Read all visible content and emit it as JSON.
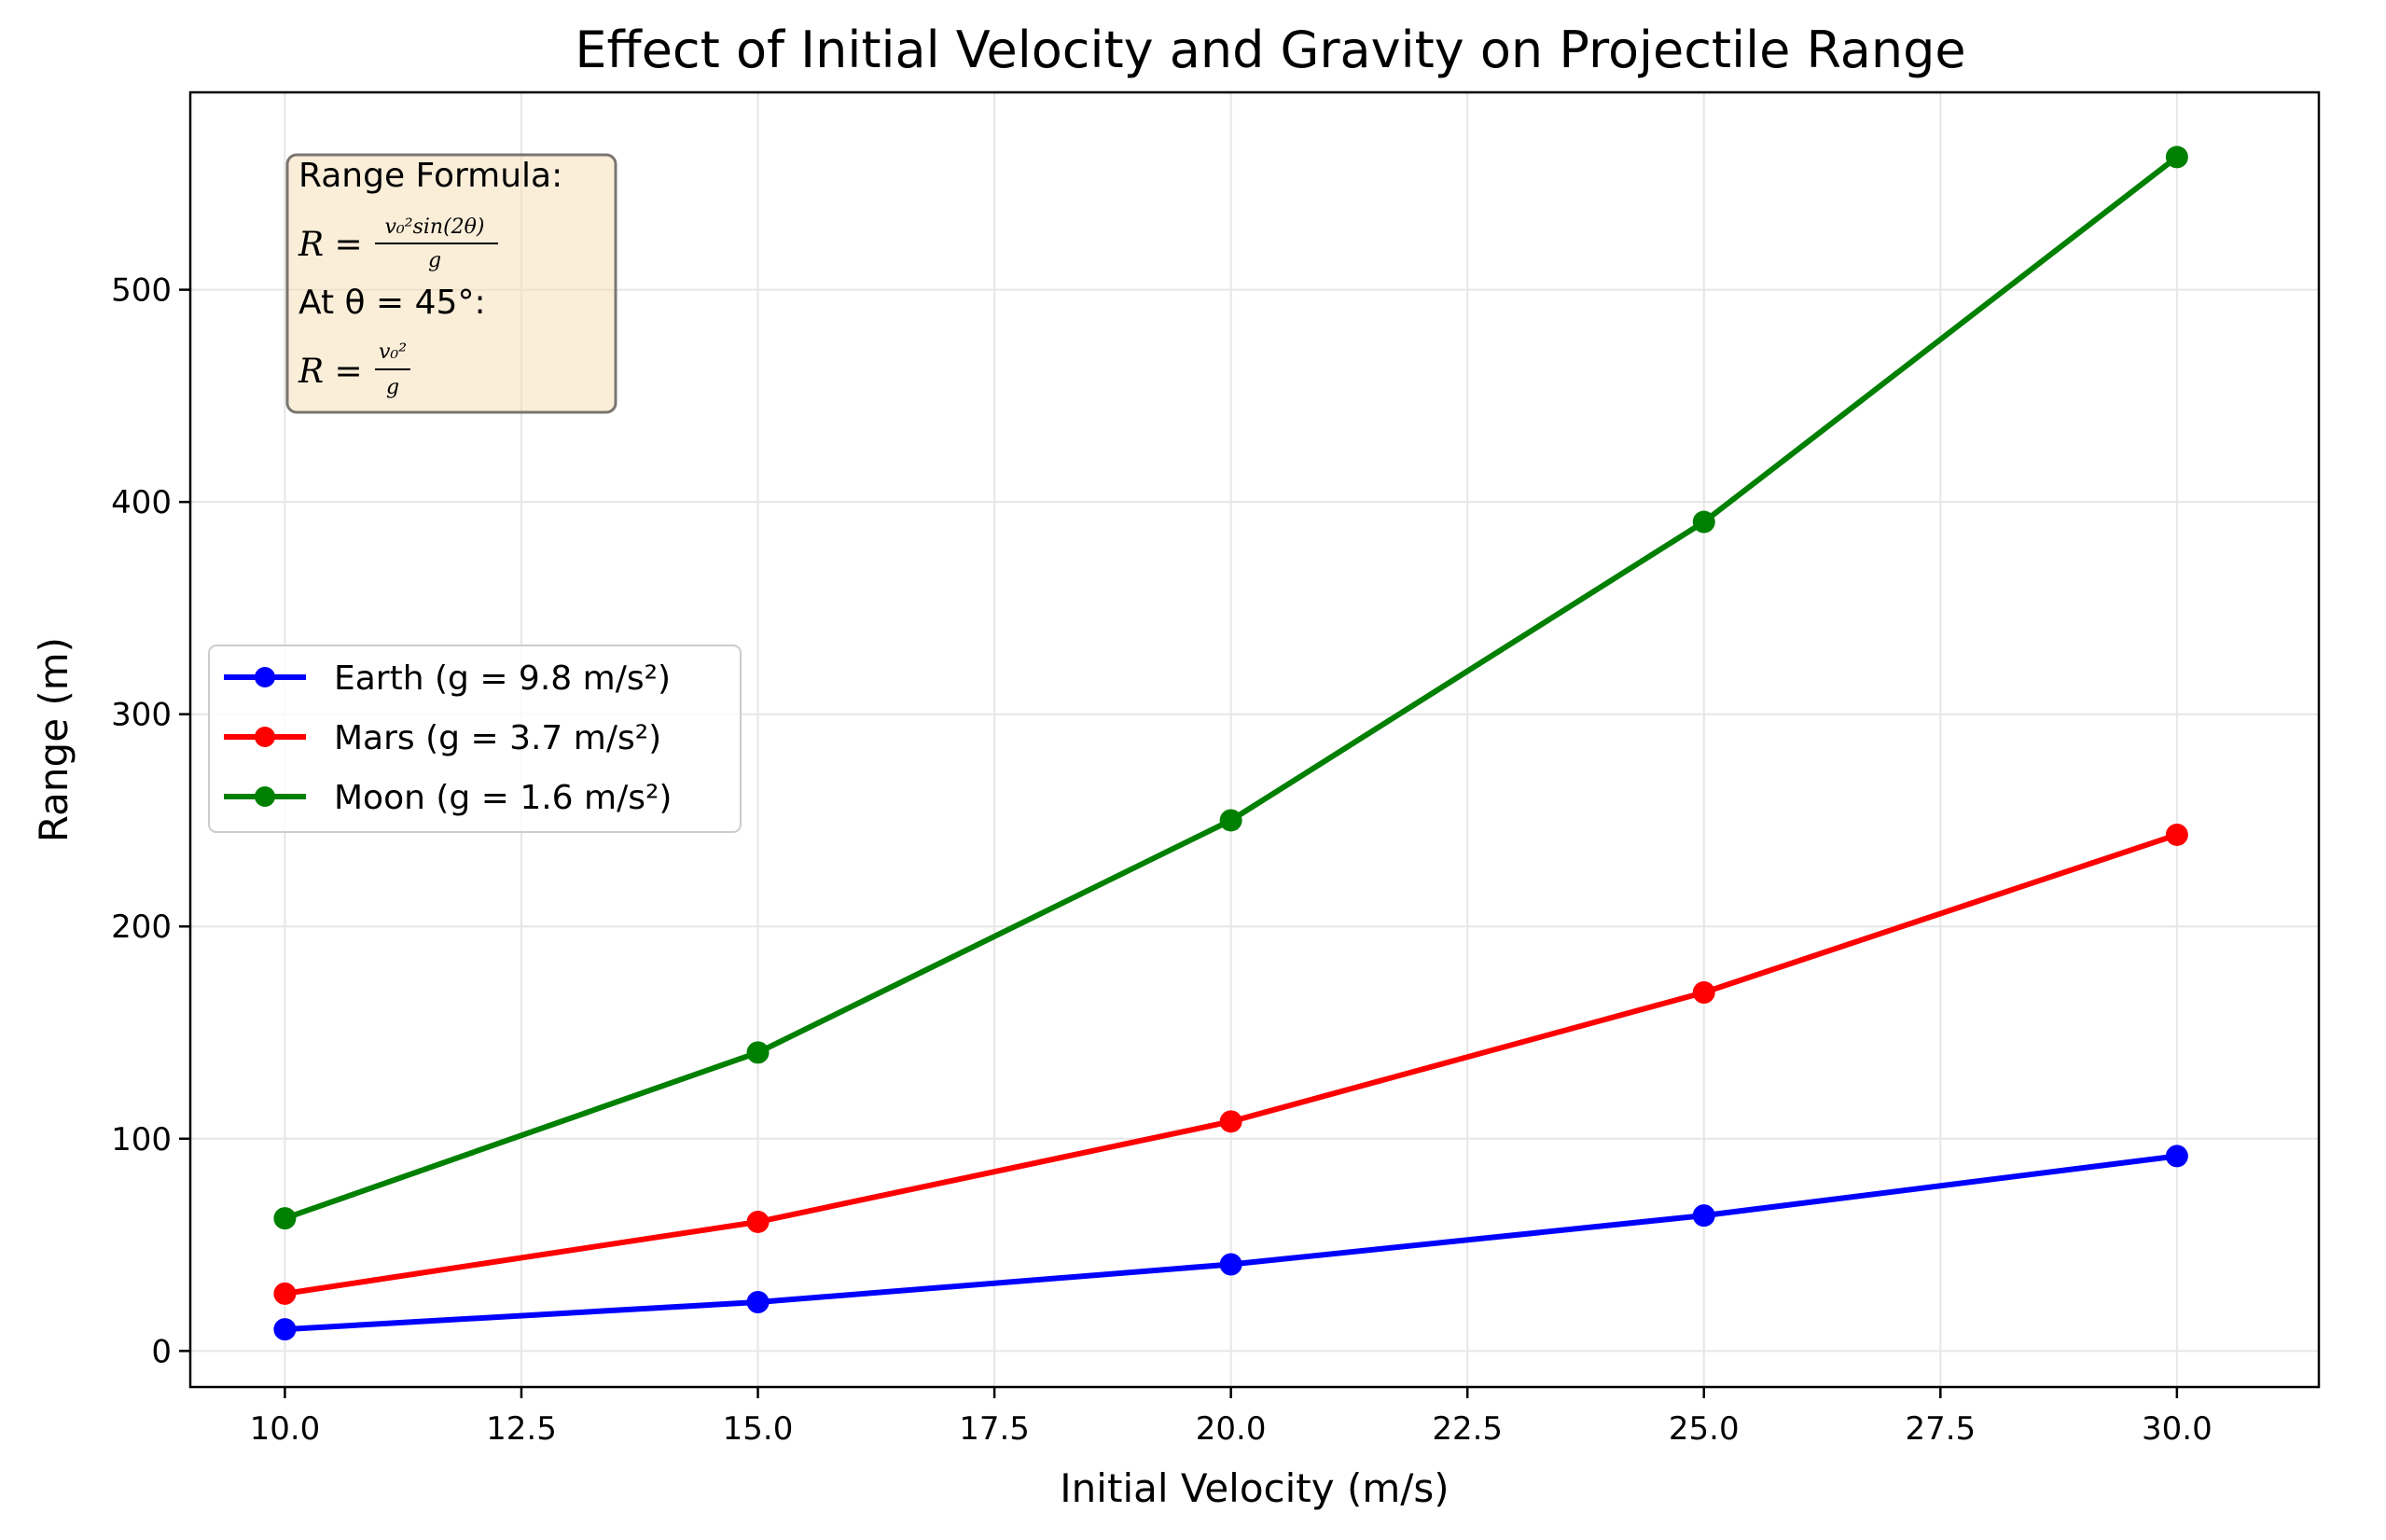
{
  "chart_data": {
    "type": "line",
    "title": "Effect of Initial Velocity and Gravity on Projectile Range",
    "xlabel": "Initial Velocity (m/s)",
    "ylabel": "Range (m)",
    "x": [
      10,
      15,
      20,
      25,
      30
    ],
    "xlim": [
      9,
      31.5
    ],
    "ylim": [
      -17,
      593
    ],
    "x_ticks": [
      "10.0",
      "12.5",
      "15.0",
      "17.5",
      "20.0",
      "22.5",
      "25.0",
      "27.5",
      "30.0"
    ],
    "y_ticks": [
      "0",
      "100",
      "200",
      "300",
      "400",
      "500"
    ],
    "grid": true,
    "legend_placement": "center-left",
    "series": [
      {
        "name": "Earth (g = 9.8 m/s²)",
        "color": "#0000ff",
        "values": [
          10.2,
          23.0,
          40.8,
          63.8,
          91.8
        ]
      },
      {
        "name": "Mars (g = 3.7 m/s²)",
        "color": "#ff0000",
        "values": [
          27.0,
          60.8,
          108.1,
          168.9,
          243.2
        ]
      },
      {
        "name": "Moon (g = 1.6 m/s²)",
        "color": "#008000",
        "values": [
          62.5,
          140.6,
          250.0,
          390.6,
          562.5
        ]
      }
    ],
    "annotation": {
      "heading": "Range Formula:",
      "formula_1_lhs": "R =",
      "formula_1_num": "v₀²sin(2θ)",
      "formula_1_den": "g",
      "condition": "At θ = 45°:",
      "formula_2_lhs": "R =",
      "formula_2_num": "v₀²",
      "formula_2_den": "g"
    }
  }
}
